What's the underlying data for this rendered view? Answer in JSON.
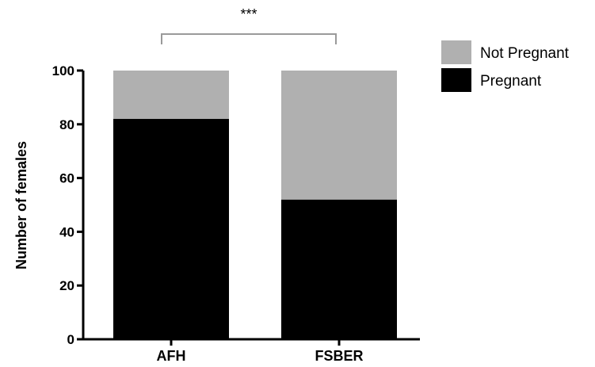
{
  "chart_data": {
    "type": "bar",
    "stacked": true,
    "categories": [
      "AFH",
      "FSBER"
    ],
    "series": [
      {
        "name": "Pregnant",
        "values": [
          82,
          52
        ],
        "color": "#000000"
      },
      {
        "name": "Not Pregnant",
        "values": [
          18,
          48
        ],
        "color": "#b0b0b0"
      }
    ],
    "ylabel": "Number of females",
    "ylim": [
      0,
      100
    ],
    "yticks": [
      0,
      20,
      40,
      60,
      80,
      100
    ],
    "legend_position": "top-right",
    "significance": {
      "label": "***",
      "between": [
        "AFH",
        "FSBER"
      ]
    }
  }
}
